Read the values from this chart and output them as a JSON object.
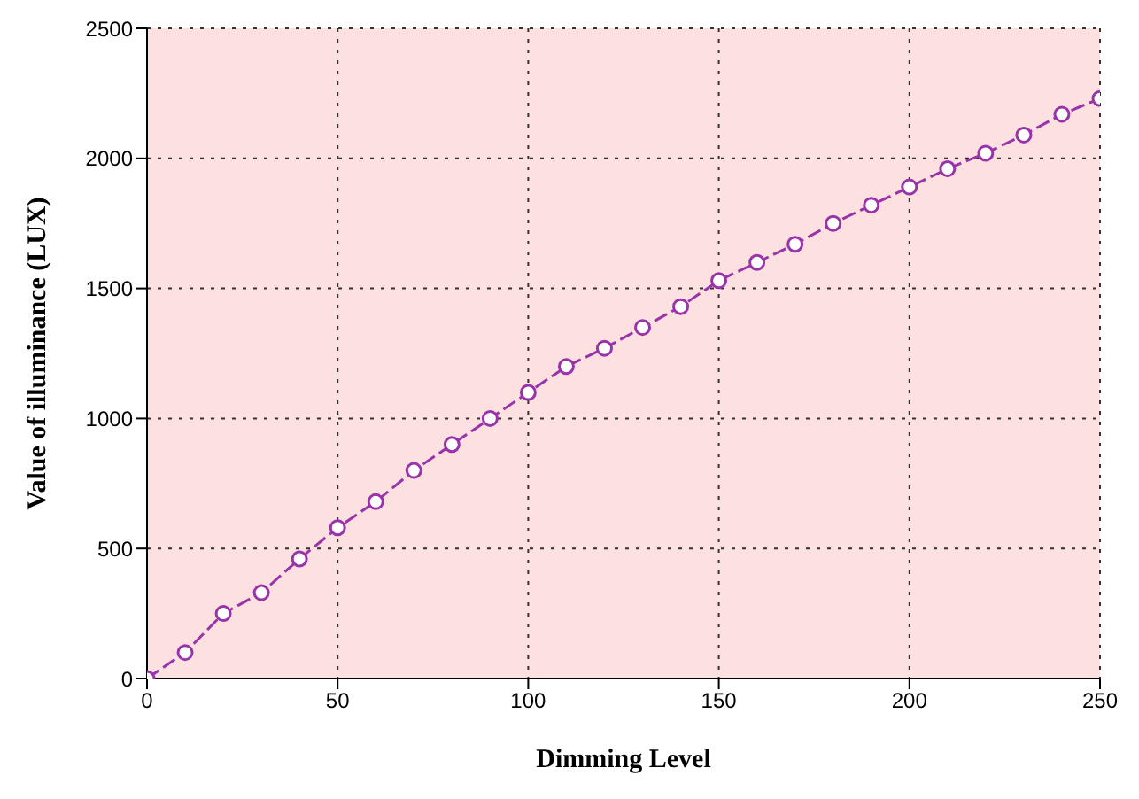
{
  "chart_data": {
    "type": "line",
    "xlabel": "Dimming Level",
    "ylabel": "Value of illuminance (LUX)",
    "x": [
      0,
      10,
      20,
      30,
      40,
      50,
      60,
      70,
      80,
      90,
      100,
      110,
      120,
      130,
      140,
      150,
      160,
      170,
      180,
      190,
      200,
      210,
      220,
      230,
      240,
      250
    ],
    "series": [
      {
        "color": "#9933aa",
        "values": [
          0,
          100,
          250,
          330,
          460,
          580,
          680,
          800,
          900,
          1000,
          1100,
          1200,
          1270,
          1350,
          1430,
          1530,
          1600,
          1670,
          1750,
          1820,
          1890,
          1960,
          2020,
          2090,
          2170,
          2230
        ]
      }
    ],
    "xlim": [
      0,
      250
    ],
    "xticks": [
      0,
      50,
      100,
      150,
      200,
      250
    ],
    "ylim": [
      0,
      2500
    ],
    "yticks": [
      0,
      500,
      1000,
      1500,
      2000,
      2500
    ],
    "grid": true,
    "marker": "circle",
    "line_style": "dashed"
  }
}
